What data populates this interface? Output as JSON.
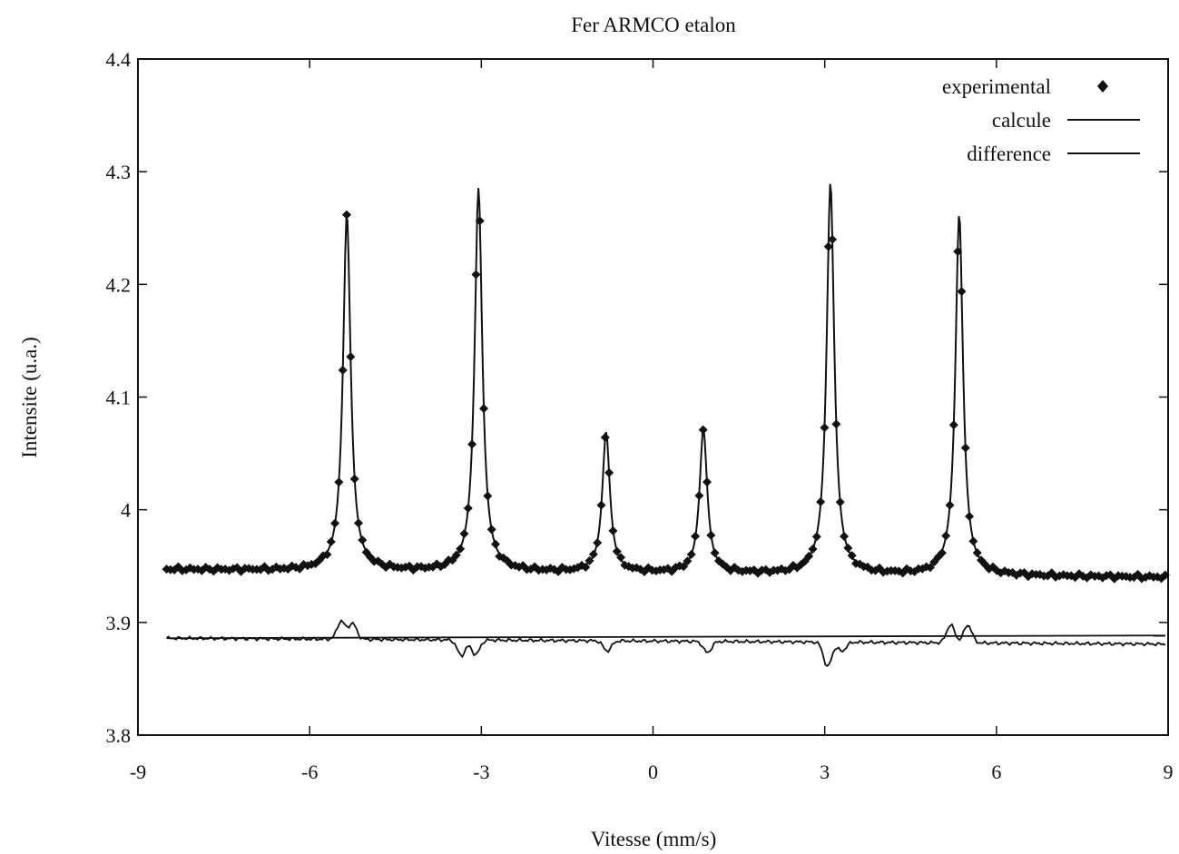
{
  "chart_data": {
    "type": "scatter",
    "title": "Fer ARMCO etalon",
    "xlabel": "Vitesse (mm/s)",
    "ylabel": "Intensite (u.a.)",
    "xlim": [
      -9,
      9
    ],
    "ylim": [
      3.8,
      4.4
    ],
    "x_ticks": [
      -9,
      -6,
      -3,
      0,
      3,
      6,
      9
    ],
    "y_ticks": [
      3.8,
      3.9,
      4.0,
      4.1,
      4.2,
      4.3,
      4.4
    ],
    "x_tick_labels": [
      "-9",
      "-6",
      "-3",
      "0",
      "3",
      "6",
      "9"
    ],
    "y_tick_labels": [
      "3.8",
      "3.9",
      "4",
      "4.1",
      "4.2",
      "4.3",
      "4.4"
    ],
    "grid": false,
    "legend_position": "top-right",
    "legend": [
      {
        "label": "experimental",
        "marker": "diamond"
      },
      {
        "label": "calcule",
        "marker": "line"
      },
      {
        "label": "difference",
        "marker": "line"
      }
    ],
    "x_range": [
      -8.5,
      8.95
    ],
    "difference_baseline": 3.886,
    "peaks": [
      {
        "position": -5.35,
        "height": 4.262,
        "width": 0.16
      },
      {
        "position": -3.05,
        "height": 4.285,
        "width": 0.16
      },
      {
        "position": -0.82,
        "height": 4.068,
        "width": 0.16
      },
      {
        "position": 0.88,
        "height": 4.071,
        "width": 0.16
      },
      {
        "position": 3.1,
        "height": 4.29,
        "width": 0.16
      },
      {
        "position": 5.35,
        "height": 4.262,
        "width": 0.16
      }
    ],
    "difference_features": [
      {
        "x": -5.45,
        "y": 3.902
      },
      {
        "x": -5.25,
        "y": 3.9
      },
      {
        "x": -3.35,
        "y": 3.872
      },
      {
        "x": -3.1,
        "y": 3.873
      },
      {
        "x": -0.8,
        "y": 3.877
      },
      {
        "x": 0.95,
        "y": 3.876
      },
      {
        "x": 3.05,
        "y": 3.864
      },
      {
        "x": 3.3,
        "y": 3.878
      },
      {
        "x": 5.2,
        "y": 3.902
      },
      {
        "x": 5.5,
        "y": 3.902
      }
    ]
  }
}
